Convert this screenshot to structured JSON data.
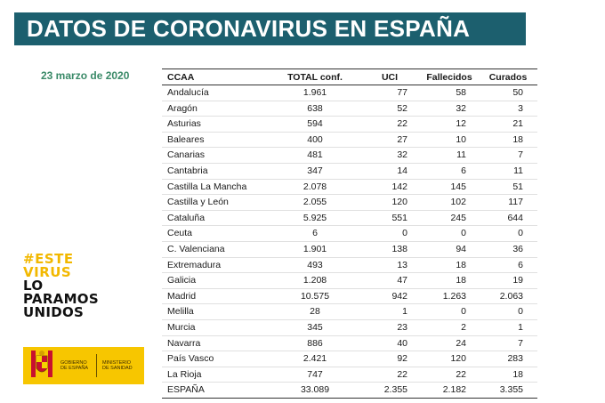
{
  "header": {
    "title": "DATOS DE CORONAVIRUS EN ESPAÑA"
  },
  "date": "23 marzo de 2020",
  "table": {
    "columns": [
      "CCAA",
      "TOTAL conf.",
      "UCI",
      "Fallecidos",
      "Curados"
    ],
    "rows": [
      [
        "Andalucía",
        "1.961",
        "77",
        "58",
        "50"
      ],
      [
        "Aragón",
        "638",
        "52",
        "32",
        "3"
      ],
      [
        "Asturias",
        "594",
        "22",
        "12",
        "21"
      ],
      [
        "Baleares",
        "400",
        "27",
        "10",
        "18"
      ],
      [
        "Canarias",
        "481",
        "32",
        "11",
        "7"
      ],
      [
        "Cantabria",
        "347",
        "14",
        "6",
        "11"
      ],
      [
        "Castilla La Mancha",
        "2.078",
        "142",
        "145",
        "51"
      ],
      [
        "Castilla y León",
        "2.055",
        "120",
        "102",
        "117"
      ],
      [
        "Cataluña",
        "5.925",
        "551",
        "245",
        "644"
      ],
      [
        "Ceuta",
        "6",
        "0",
        "0",
        "0"
      ],
      [
        "C. Valenciana",
        "1.901",
        "138",
        "94",
        "36"
      ],
      [
        "Extremadura",
        "493",
        "13",
        "18",
        "6"
      ],
      [
        "Galicia",
        "1.208",
        "47",
        "18",
        "19"
      ],
      [
        "Madrid",
        "10.575",
        "942",
        "1.263",
        "2.063"
      ],
      [
        "Melilla",
        "28",
        "1",
        "0",
        "0"
      ],
      [
        "Murcia",
        "345",
        "23",
        "2",
        "1"
      ],
      [
        "Navarra",
        "886",
        "40",
        "24",
        "7"
      ],
      [
        "País Vasco",
        "2.421",
        "92",
        "120",
        "283"
      ],
      [
        "La Rioja",
        "747",
        "22",
        "22",
        "18"
      ]
    ],
    "total": [
      "ESPAÑA",
      "33.089",
      "2.355",
      "2.182",
      "3.355"
    ]
  },
  "campaign": {
    "line1": "#ESTE",
    "line2": "VIRUS",
    "line3": "LO",
    "line4": "PARAMOS",
    "line5": "UNIDOS"
  },
  "government": {
    "left_line1": "GOBIERNO",
    "left_line2": "DE ESPAÑA",
    "right_line1": "MINISTERIO",
    "right_line2": "DE SANIDAD"
  },
  "colors": {
    "banner": "#1c5f6e",
    "date": "#3a8a68",
    "campaign_yellow": "#f2b800",
    "logo_yellow": "#f7c600"
  }
}
